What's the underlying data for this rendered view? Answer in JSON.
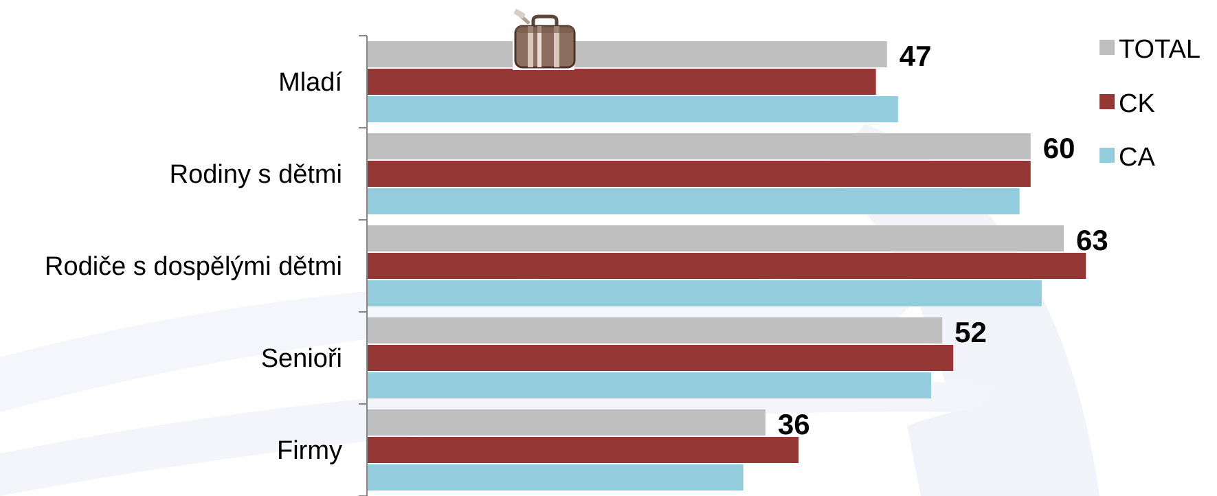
{
  "chart_data": {
    "type": "bar",
    "orientation": "horizontal",
    "categories": [
      "Mladí",
      "Rodiny s dětmi",
      "Rodiče s dospělými dětmi",
      "Senioři",
      "Firmy"
    ],
    "series": [
      {
        "name": "TOTAL",
        "color": "#bfbfbf",
        "values": [
          47,
          60,
          63,
          52,
          36
        ]
      },
      {
        "name": "CK",
        "color": "#953735",
        "values": [
          46,
          60,
          65,
          53,
          39
        ]
      },
      {
        "name": "CA",
        "color": "#93cddd",
        "values": [
          48,
          59,
          61,
          51,
          34
        ]
      }
    ],
    "data_labels_series": "TOTAL",
    "xlim": [
      0,
      65
    ],
    "gridlines": false,
    "legend_position": "right",
    "title": "",
    "xlabel": "",
    "ylabel": ""
  },
  "decorations": {
    "icon": "suitcase-icon",
    "background": "faint-swoosh-watermark"
  }
}
